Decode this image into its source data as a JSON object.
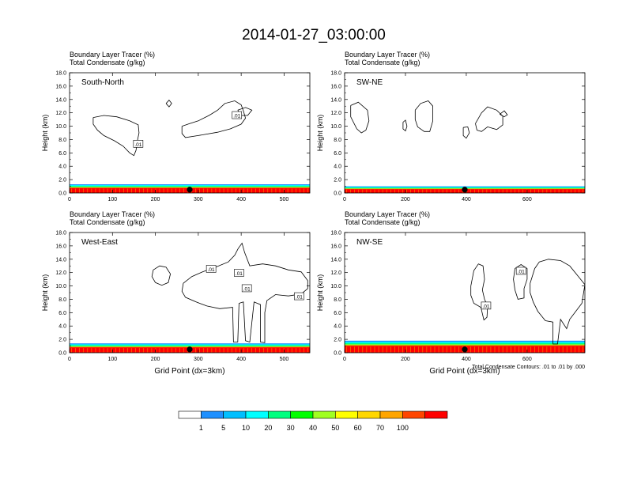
{
  "title": "2014-01-27_03:00:00",
  "colorbar": {
    "labels": [
      "1",
      "5",
      "10",
      "20",
      "30",
      "40",
      "50",
      "60",
      "70",
      "100"
    ],
    "colors": [
      "#ffffff",
      "#1e90ff",
      "#00bfff",
      "#00ffff",
      "#00ff7f",
      "#00ff00",
      "#a0ff20",
      "#ffff00",
      "#ffd700",
      "#ffa500",
      "#ff4500",
      "#ff0000"
    ]
  },
  "chart_data": [
    {
      "type": "area",
      "panel": "South-North",
      "label": "South-North",
      "subtitle_lines": [
        "Boundary Layer Tracer   (%)",
        "Total Condensate   (g/kg)"
      ],
      "ylabel": "Height (km)",
      "xlabel": "",
      "ylim": [
        0,
        18
      ],
      "xlim": [
        0,
        560
      ],
      "yticks": [
        "0.0",
        "2.0",
        "4.0",
        "6.0",
        "8.0",
        "10.0",
        "12.0",
        "14.0",
        "16.0",
        "18.0"
      ],
      "xticks": [
        0,
        100,
        200,
        300,
        400,
        500
      ],
      "boundary_layer_top_km": 1.3,
      "marker_x": 280,
      "contour_labels": [
        {
          "text": ".01",
          "x": 160,
          "y": 7.3
        },
        {
          "text": ".01",
          "x": 390,
          "y": 11.6
        }
      ],
      "contours": [
        [
          [
            55,
            11.3
          ],
          [
            80,
            11.6
          ],
          [
            110,
            11.4
          ],
          [
            140,
            10.8
          ],
          [
            160,
            10.2
          ],
          [
            162,
            9.0
          ],
          [
            158,
            7.8
          ],
          [
            155,
            6.4
          ],
          [
            150,
            5.6
          ],
          [
            140,
            6.0
          ],
          [
            125,
            7.0
          ],
          [
            105,
            7.8
          ],
          [
            80,
            8.6
          ],
          [
            65,
            9.4
          ],
          [
            55,
            10.3
          ],
          [
            55,
            11.3
          ]
        ],
        [
          [
            262,
            10.0
          ],
          [
            280,
            10.4
          ],
          [
            300,
            10.8
          ],
          [
            325,
            11.6
          ],
          [
            345,
            12.4
          ],
          [
            362,
            13.4
          ],
          [
            385,
            13.8
          ],
          [
            400,
            13.2
          ],
          [
            405,
            12.3
          ],
          [
            410,
            11.2
          ],
          [
            400,
            10.3
          ],
          [
            375,
            9.6
          ],
          [
            345,
            9.1
          ],
          [
            300,
            8.6
          ],
          [
            270,
            8.3
          ],
          [
            262,
            8.9
          ],
          [
            262,
            10.0
          ]
        ],
        [
          [
            225,
            13.4
          ],
          [
            232,
            13.9
          ],
          [
            238,
            13.4
          ],
          [
            232,
            12.9
          ],
          [
            225,
            13.4
          ]
        ],
        [
          [
            392,
            12.4
          ],
          [
            410,
            12.8
          ],
          [
            425,
            12.4
          ],
          [
            415,
            11.6
          ],
          [
            400,
            11.6
          ],
          [
            392,
            12.4
          ]
        ]
      ]
    },
    {
      "type": "area",
      "panel": "SW-NE",
      "label": "SW-NE",
      "subtitle_lines": [
        "Boundary Layer Tracer   (%)",
        "Total Condensate   (g/kg)"
      ],
      "ylabel": "Height (km)",
      "xlabel": "",
      "ylim": [
        0,
        18
      ],
      "xlim": [
        0,
        790
      ],
      "yticks": [
        "0.0",
        "2.0",
        "4.0",
        "6.0",
        "8.0",
        "10.0",
        "12.0",
        "14.0",
        "16.0",
        "18.0"
      ],
      "xticks": [
        0,
        200,
        400,
        600
      ],
      "boundary_layer_top_km": 1.0,
      "marker_x": 395,
      "contour_labels": [],
      "contours": [
        [
          [
            20,
            13.1
          ],
          [
            45,
            13.6
          ],
          [
            75,
            12.4
          ],
          [
            80,
            10.8
          ],
          [
            70,
            9.4
          ],
          [
            55,
            9.0
          ],
          [
            40,
            9.6
          ],
          [
            20,
            11.4
          ],
          [
            20,
            13.1
          ]
        ],
        [
          [
            192,
            10.6
          ],
          [
            200,
            10.9
          ],
          [
            205,
            10.0
          ],
          [
            200,
            9.3
          ],
          [
            192,
            9.6
          ],
          [
            192,
            10.6
          ]
        ],
        [
          [
            232,
            12.4
          ],
          [
            250,
            13.4
          ],
          [
            275,
            13.8
          ],
          [
            290,
            13.0
          ],
          [
            290,
            10.8
          ],
          [
            280,
            9.2
          ],
          [
            262,
            9.2
          ],
          [
            240,
            9.9
          ],
          [
            232,
            11.0
          ],
          [
            232,
            12.4
          ]
        ],
        [
          [
            390,
            9.8
          ],
          [
            405,
            9.9
          ],
          [
            410,
            9.0
          ],
          [
            400,
            8.2
          ],
          [
            390,
            8.6
          ],
          [
            390,
            9.8
          ]
        ],
        [
          [
            430,
            10.4
          ],
          [
            450,
            12.0
          ],
          [
            470,
            12.9
          ],
          [
            500,
            12.4
          ],
          [
            520,
            11.5
          ],
          [
            520,
            10.2
          ],
          [
            500,
            9.5
          ],
          [
            470,
            9.9
          ],
          [
            450,
            9.2
          ],
          [
            435,
            9.4
          ],
          [
            430,
            10.4
          ]
        ],
        [
          [
            510,
            11.8
          ],
          [
            525,
            12.3
          ],
          [
            535,
            11.7
          ],
          [
            525,
            11.4
          ],
          [
            510,
            11.8
          ]
        ]
      ]
    },
    {
      "type": "area",
      "panel": "West-East",
      "label": "West-East",
      "subtitle_lines": [
        "Boundary Layer Tracer   (%)",
        "Total Condensate   (g/kg)"
      ],
      "ylabel": "Height (km)",
      "xlabel": "Grid Point (dx=3km)",
      "ylim": [
        0,
        18
      ],
      "xlim": [
        0,
        560
      ],
      "yticks": [
        "0.0",
        "2.0",
        "4.0",
        "6.0",
        "8.0",
        "10.0",
        "12.0",
        "14.0",
        "16.0",
        "18.0"
      ],
      "xticks": [
        0,
        100,
        200,
        300,
        400,
        500
      ],
      "boundary_layer_top_km": 1.4,
      "marker_x": 280,
      "contour_labels": [
        {
          "text": ".01",
          "x": 330,
          "y": 12.5
        },
        {
          "text": ".01",
          "x": 395,
          "y": 11.9
        },
        {
          "text": ".01",
          "x": 413,
          "y": 9.6
        },
        {
          "text": ".01",
          "x": 535,
          "y": 8.4
        }
      ],
      "contours": [
        [
          [
            195,
            12.4
          ],
          [
            210,
            13.0
          ],
          [
            225,
            12.8
          ],
          [
            235,
            11.8
          ],
          [
            230,
            10.5
          ],
          [
            215,
            10.1
          ],
          [
            200,
            10.5
          ],
          [
            192,
            11.4
          ],
          [
            195,
            12.4
          ]
        ],
        [
          [
            265,
            10.4
          ],
          [
            285,
            11.4
          ],
          [
            310,
            12.1
          ],
          [
            340,
            12.8
          ],
          [
            370,
            13.6
          ],
          [
            385,
            14.6
          ],
          [
            393,
            15.6
          ],
          [
            402,
            16.4
          ],
          [
            408,
            15.0
          ],
          [
            420,
            13.0
          ],
          [
            450,
            13.3
          ],
          [
            480,
            13.0
          ],
          [
            510,
            12.4
          ],
          [
            540,
            12.1
          ],
          [
            555,
            10.8
          ],
          [
            555,
            9.6
          ],
          [
            540,
            8.8
          ],
          [
            510,
            8.5
          ],
          [
            480,
            8.7
          ],
          [
            460,
            7.8
          ],
          [
            455,
            6.0
          ],
          [
            455,
            1.5
          ],
          [
            445,
            1.6
          ],
          [
            445,
            7.2
          ],
          [
            430,
            7.6
          ],
          [
            420,
            1.6
          ],
          [
            410,
            1.8
          ],
          [
            405,
            7.6
          ],
          [
            395,
            7.4
          ],
          [
            392,
            1.6
          ],
          [
            382,
            1.6
          ],
          [
            380,
            6.8
          ],
          [
            350,
            6.6
          ],
          [
            320,
            7.0
          ],
          [
            295,
            7.6
          ],
          [
            270,
            8.3
          ],
          [
            262,
            9.2
          ],
          [
            265,
            10.4
          ]
        ]
      ]
    },
    {
      "type": "area",
      "panel": "NW-SE",
      "label": "NW-SE",
      "subtitle_lines": [
        "Boundary Layer Tracer   (%)",
        "Total Condensate   (g/kg)"
      ],
      "ylabel": "Height (km)",
      "xlabel": "Grid Point (dx=3km)",
      "note": "Total Condensate Contours: .01 to .01 by .000",
      "ylim": [
        0,
        18
      ],
      "xlim": [
        0,
        790
      ],
      "yticks": [
        "0.0",
        "2.0",
        "4.0",
        "6.0",
        "8.0",
        "10.0",
        "12.0",
        "14.0",
        "16.0",
        "18.0"
      ],
      "xticks": [
        0,
        200,
        400,
        600
      ],
      "boundary_layer_top_km": 1.8,
      "marker_x": 395,
      "contour_labels": [
        {
          "text": ".01",
          "x": 580,
          "y": 12.2
        },
        {
          "text": ".01",
          "x": 465,
          "y": 7.0
        }
      ],
      "contours": [
        [
          [
            415,
            10.0
          ],
          [
            425,
            12.3
          ],
          [
            440,
            13.3
          ],
          [
            455,
            13.0
          ],
          [
            460,
            11.0
          ],
          [
            453,
            9.4
          ],
          [
            460,
            8.0
          ],
          [
            470,
            7.0
          ],
          [
            468,
            5.3
          ],
          [
            458,
            4.9
          ],
          [
            448,
            6.8
          ],
          [
            425,
            7.4
          ],
          [
            415,
            8.6
          ],
          [
            415,
            10.0
          ]
        ],
        [
          [
            560,
            12.6
          ],
          [
            580,
            13.2
          ],
          [
            600,
            12.6
          ],
          [
            600,
            11.0
          ],
          [
            590,
            9.6
          ],
          [
            590,
            8.2
          ],
          [
            570,
            8.0
          ],
          [
            560,
            9.4
          ],
          [
            555,
            11.0
          ],
          [
            560,
            12.6
          ]
        ],
        [
          [
            610,
            10.4
          ],
          [
            625,
            12.6
          ],
          [
            640,
            13.6
          ],
          [
            670,
            14.0
          ],
          [
            710,
            13.8
          ],
          [
            740,
            13.0
          ],
          [
            765,
            11.6
          ],
          [
            790,
            10.2
          ],
          [
            780,
            7.4
          ],
          [
            760,
            6.2
          ],
          [
            740,
            5.0
          ],
          [
            730,
            3.6
          ],
          [
            710,
            5.0
          ],
          [
            700,
            1.3
          ],
          [
            685,
            1.3
          ],
          [
            685,
            4.6
          ],
          [
            660,
            4.8
          ],
          [
            635,
            6.2
          ],
          [
            620,
            7.6
          ],
          [
            610,
            9.0
          ],
          [
            610,
            10.4
          ]
        ]
      ]
    }
  ]
}
